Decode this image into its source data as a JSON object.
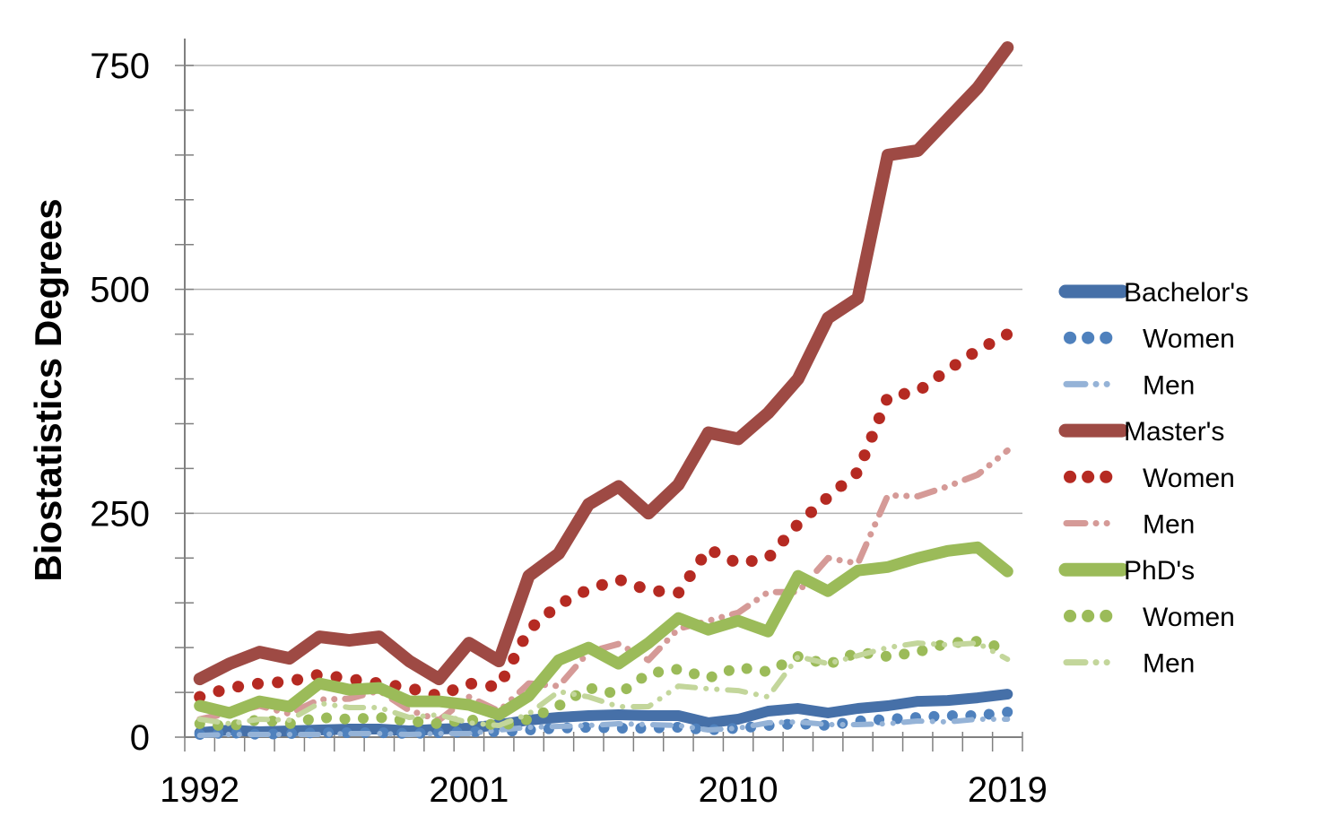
{
  "chart_data": {
    "type": "line",
    "title": "",
    "ylabel": "Biostatistics Degrees",
    "xlabel": "",
    "x": [
      1992,
      1993,
      1994,
      1995,
      1996,
      1997,
      1998,
      1999,
      2000,
      2001,
      2002,
      2003,
      2004,
      2005,
      2006,
      2007,
      2008,
      2009,
      2010,
      2011,
      2012,
      2013,
      2014,
      2015,
      2016,
      2017,
      2018,
      2019
    ],
    "x_axis_tick_labels": [
      "1992",
      "2001",
      "2010",
      "2019"
    ],
    "x_axis_tick_years": [
      1992,
      2001,
      2010,
      2019
    ],
    "y_ticks": [
      0,
      250,
      500,
      750
    ],
    "y_minor_step": 50,
    "ylim": [
      0,
      780
    ],
    "grid": "horizontal-major",
    "legend_position": "right",
    "colors": {
      "bachelors": "#4670a8",
      "bachelors_women": "#4f81bd",
      "bachelors_men": "#95b3d7",
      "masters": "#9e4a44",
      "masters_women": "#b52a22",
      "masters_men": "#d59a97",
      "phds": "#9bbb59",
      "phds_women": "#9bbb59",
      "phds_men": "#c3d69b",
      "gridline": "#b0b0b0",
      "axis": "#808080"
    },
    "series": [
      {
        "name": "bachelors-total",
        "label": "Bachelor's",
        "indent": false,
        "style": "solid",
        "color": "#4670a8",
        "values": [
          5,
          8,
          6,
          7,
          8,
          9,
          9,
          7,
          9,
          10,
          14,
          19,
          22,
          24,
          25,
          24,
          24,
          16,
          20,
          29,
          32,
          27,
          32,
          35,
          40,
          41,
          44,
          48
        ]
      },
      {
        "name": "bachelors-women",
        "label": "Women",
        "indent": true,
        "style": "dotted",
        "color": "#4f81bd",
        "values": [
          3,
          5,
          3,
          4,
          5,
          5,
          5,
          4,
          5,
          6,
          6,
          8,
          10,
          11,
          10,
          10,
          11,
          8,
          10,
          13,
          15,
          13,
          18,
          20,
          22,
          24,
          24,
          28
        ]
      },
      {
        "name": "bachelors-men",
        "label": "Men",
        "indent": true,
        "style": "dashdot",
        "color": "#95b3d7",
        "values": [
          2,
          3,
          3,
          3,
          3,
          4,
          4,
          3,
          4,
          4,
          8,
          11,
          12,
          13,
          15,
          14,
          13,
          8,
          10,
          16,
          17,
          14,
          14,
          15,
          18,
          17,
          20,
          20
        ]
      },
      {
        "name": "masters-total",
        "label": "Master's",
        "indent": false,
        "style": "solid",
        "color": "#9e4a44",
        "values": [
          65,
          82,
          95,
          88,
          112,
          108,
          112,
          85,
          65,
          105,
          85,
          180,
          205,
          260,
          280,
          250,
          282,
          340,
          333,
          362,
          400,
          468,
          490,
          650,
          655,
          690,
          725,
          770
        ]
      },
      {
        "name": "masters-women",
        "label": "Women",
        "indent": true,
        "style": "dotted",
        "color": "#b52a22",
        "values": [
          45,
          55,
          60,
          62,
          70,
          65,
          60,
          55,
          46,
          60,
          56,
          120,
          148,
          165,
          176,
          164,
          161,
          210,
          194,
          200,
          238,
          268,
          296,
          380,
          386,
          410,
          432,
          450
        ]
      },
      {
        "name": "masters-men",
        "label": "Men",
        "indent": true,
        "style": "dashdot",
        "color": "#d59a97",
        "values": [
          20,
          27,
          35,
          26,
          42,
          43,
          52,
          30,
          19,
          45,
          29,
          60,
          57,
          95,
          104,
          86,
          121,
          130,
          139,
          162,
          162,
          200,
          194,
          270,
          269,
          280,
          293,
          320
        ]
      },
      {
        "name": "phds-total",
        "label": "PhD's",
        "indent": false,
        "style": "solid",
        "color": "#9bbb59",
        "values": [
          35,
          27,
          40,
          34,
          60,
          53,
          55,
          40,
          40,
          36,
          25,
          46,
          86,
          100,
          82,
          105,
          133,
          120,
          130,
          118,
          180,
          163,
          186,
          190,
          200,
          208,
          212,
          185
        ]
      },
      {
        "name": "phds-women",
        "label": "Women",
        "indent": true,
        "style": "dotted",
        "color": "#9bbb59",
        "values": [
          15,
          12,
          20,
          15,
          22,
          20,
          22,
          18,
          15,
          20,
          12,
          20,
          35,
          55,
          48,
          71,
          76,
          66,
          78,
          73,
          90,
          81,
          95,
          90,
          95,
          105,
          107,
          98
        ]
      },
      {
        "name": "phds-men",
        "label": "Men",
        "indent": true,
        "style": "dashdot",
        "color": "#c3d69b",
        "values": [
          20,
          15,
          20,
          19,
          38,
          33,
          33,
          22,
          25,
          16,
          13,
          26,
          51,
          45,
          34,
          34,
          57,
          54,
          52,
          45,
          90,
          82,
          91,
          100,
          105,
          103,
          105,
          87
        ]
      }
    ]
  }
}
